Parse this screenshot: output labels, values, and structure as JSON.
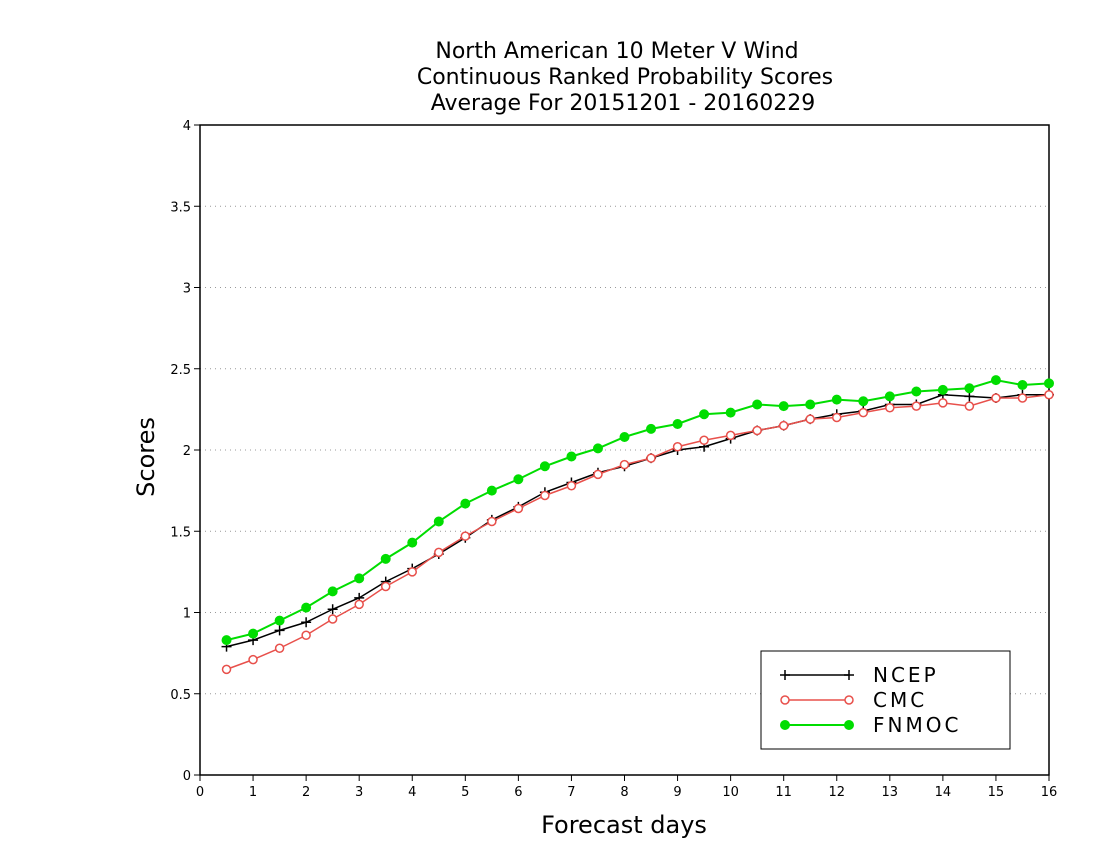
{
  "chart_data": {
    "type": "line",
    "title_lines": [
      "North American 10 Meter V Wind",
      "Continuous Ranked Probability Scores",
      "Average For 20151201 - 20160229"
    ],
    "xlabel": "Forecast days",
    "ylabel": "Scores",
    "xlim": [
      0,
      16
    ],
    "ylim": [
      0,
      4
    ],
    "x_ticks": [
      "0",
      "1",
      "2",
      "3",
      "4",
      "5",
      "6",
      "7",
      "8",
      "9",
      "10",
      "11",
      "12",
      "13",
      "14",
      "15",
      "16"
    ],
    "y_ticks": [
      "0",
      "0.5",
      "1",
      "1.5",
      "2",
      "2.5",
      "3",
      "3.5",
      "4"
    ],
    "grid": "horizontal dotted",
    "legend_position": "bottom-right",
    "x": [
      0.5,
      1,
      1.5,
      2,
      2.5,
      3,
      3.5,
      4,
      4.5,
      5,
      5.5,
      6,
      6.5,
      7,
      7.5,
      8,
      8.5,
      9,
      9.5,
      10,
      10.5,
      11,
      11.5,
      12,
      12.5,
      13,
      13.5,
      14,
      14.5,
      15,
      15.5,
      16
    ],
    "series": [
      {
        "name": "NCEP",
        "color": "#000000",
        "marker": "plus",
        "values": [
          0.79,
          0.83,
          0.89,
          0.94,
          1.02,
          1.09,
          1.19,
          1.27,
          1.36,
          1.46,
          1.57,
          1.65,
          1.74,
          1.8,
          1.86,
          1.9,
          1.95,
          2.0,
          2.02,
          2.07,
          2.12,
          2.15,
          2.19,
          2.22,
          2.24,
          2.28,
          2.28,
          2.34,
          2.33,
          2.32,
          2.34,
          2.34
        ]
      },
      {
        "name": "CMC",
        "color": "#e8504b",
        "marker": "open-circle",
        "values": [
          0.65,
          0.71,
          0.78,
          0.86,
          0.96,
          1.05,
          1.16,
          1.25,
          1.37,
          1.47,
          1.56,
          1.64,
          1.72,
          1.78,
          1.85,
          1.91,
          1.95,
          2.02,
          2.06,
          2.09,
          2.12,
          2.15,
          2.19,
          2.2,
          2.23,
          2.26,
          2.27,
          2.29,
          2.27,
          2.32,
          2.32,
          2.34
        ]
      },
      {
        "name": "FNMOC",
        "color": "#00dd00",
        "marker": "filled-circle",
        "values": [
          0.83,
          0.87,
          0.95,
          1.03,
          1.13,
          1.21,
          1.33,
          1.43,
          1.56,
          1.67,
          1.75,
          1.82,
          1.9,
          1.96,
          2.01,
          2.08,
          2.13,
          2.16,
          2.22,
          2.23,
          2.28,
          2.27,
          2.28,
          2.31,
          2.3,
          2.33,
          2.36,
          2.37,
          2.38,
          2.43,
          2.4,
          2.41
        ]
      }
    ]
  }
}
